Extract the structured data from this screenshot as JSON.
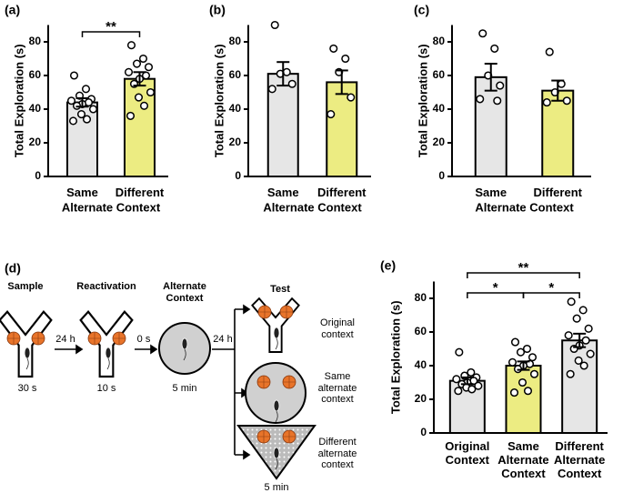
{
  "chart_data": [
    {
      "type": "bar",
      "label": "(a)",
      "ylabel": "Total Exploration (s)",
      "xlabel": "Alternate Context",
      "categories": [
        "Same",
        "Different"
      ],
      "values": [
        44,
        58
      ],
      "errors": [
        2.5,
        4
      ],
      "colors": [
        "#e6e6e6",
        "#ecec82"
      ],
      "points": [
        [
          60,
          52,
          48,
          46,
          45,
          44,
          43,
          42,
          40,
          37,
          34,
          33
        ],
        [
          78,
          70,
          67,
          65,
          62,
          60,
          58,
          55,
          50,
          47,
          42,
          36
        ]
      ],
      "ylim": [
        0,
        90
      ],
      "yticks": [
        0,
        20,
        40,
        60,
        80
      ],
      "annotations": [
        {
          "text": "**",
          "categories": [
            "Same",
            "Different"
          ]
        }
      ]
    },
    {
      "type": "bar",
      "label": "(b)",
      "ylabel": "Total Exploration (s)",
      "xlabel": "Alternate Context",
      "categories": [
        "Same",
        "Different"
      ],
      "values": [
        61,
        56
      ],
      "errors": [
        7,
        7
      ],
      "colors": [
        "#e6e6e6",
        "#ecec82"
      ],
      "points": [
        [
          90,
          62,
          61,
          55,
          52
        ],
        [
          76,
          70,
          62,
          47,
          37
        ]
      ],
      "ylim": [
        0,
        90
      ],
      "yticks": [
        0,
        20,
        40,
        60,
        80
      ],
      "annotations": []
    },
    {
      "type": "bar",
      "label": "(c)",
      "ylabel": "Total Exploration (s)",
      "xlabel": "Alternate Context",
      "categories": [
        "Same",
        "Different"
      ],
      "values": [
        59,
        51
      ],
      "errors": [
        8,
        6
      ],
      "colors": [
        "#e6e6e6",
        "#ecec82"
      ],
      "points": [
        [
          85,
          76,
          60,
          54,
          46,
          45
        ],
        [
          74,
          55,
          50,
          45,
          44
        ]
      ],
      "ylim": [
        0,
        90
      ],
      "yticks": [
        0,
        20,
        40,
        60,
        80
      ],
      "annotations": []
    },
    {
      "type": "bar",
      "label": "(e)",
      "ylabel": "Total Exploration (s)",
      "categories": [
        "Original Context",
        "Same Alternate Context",
        "Different Alternate Context"
      ],
      "values": [
        31,
        40,
        55
      ],
      "errors": [
        2,
        2.5,
        4
      ],
      "colors": [
        "#e6e6e6",
        "#ecec82",
        "#e6e6e6"
      ],
      "points": [
        [
          48,
          36,
          34,
          33,
          32,
          31,
          30,
          29,
          28,
          27,
          26,
          25
        ],
        [
          54,
          50,
          48,
          45,
          42,
          41,
          40,
          38,
          35,
          30,
          25,
          24
        ],
        [
          78,
          73,
          68,
          62,
          58,
          55,
          52,
          50,
          47,
          43,
          40,
          35
        ]
      ],
      "ylim": [
        0,
        90
      ],
      "yticks": [
        0,
        20,
        40,
        60,
        80
      ],
      "annotations": [
        {
          "text": "*",
          "categories": [
            "Original Context",
            "Same Alternate Context"
          ]
        },
        {
          "text": "*",
          "categories": [
            "Same Alternate Context",
            "Different Alternate Context"
          ]
        },
        {
          "text": "**",
          "categories": [
            "Original Context",
            "Different Alternate Context"
          ]
        }
      ]
    }
  ],
  "diagram": {
    "label": "(d)",
    "stages": [
      "Sample",
      "Reactivation",
      "Alternate Context",
      "Test"
    ],
    "durations": [
      "30 s",
      "10 s",
      "5 min",
      "5 min"
    ],
    "intervals": [
      "24 h",
      "0 s",
      "24 h"
    ],
    "test_contexts": [
      "Original context",
      "Same alternate context",
      "Different alternate context"
    ]
  }
}
